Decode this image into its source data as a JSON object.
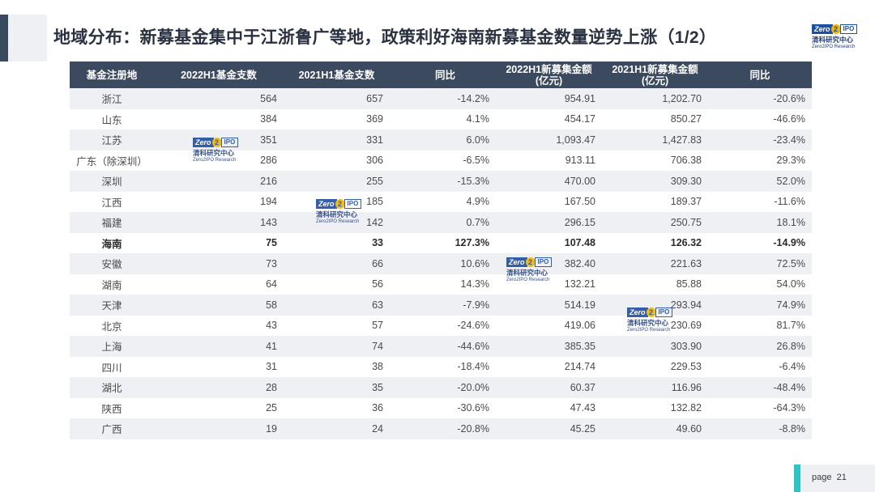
{
  "title": "地域分布：新募基金集中于江浙鲁广等地，政策利好海南新募基金数量逆势上涨（1/2）",
  "logo": {
    "zero": "Zero",
    "two": "2",
    "ipo": "IPO",
    "cn": "清科研究中心",
    "en": "Zero2IPO Research"
  },
  "table": {
    "headers": [
      "基金注册地",
      "2022H1基金支数",
      "2021H1基金支数",
      "同比",
      "2022H1新募集金额\n(亿元)",
      "2021H1新募集金额\n(亿元)",
      "同比"
    ],
    "rows": [
      [
        "浙江",
        "564",
        "657",
        "-14.2%",
        "954.91",
        "1,202.70",
        "-20.6%"
      ],
      [
        "山东",
        "384",
        "369",
        "4.1%",
        "454.17",
        "850.27",
        "-46.6%"
      ],
      [
        "江苏",
        "351",
        "331",
        "6.0%",
        "1,093.47",
        "1,427.83",
        "-23.4%"
      ],
      [
        "广东（除深圳）",
        "286",
        "306",
        "-6.5%",
        "913.11",
        "706.38",
        "29.3%"
      ],
      [
        "深圳",
        "216",
        "255",
        "-15.3%",
        "470.00",
        "309.30",
        "52.0%"
      ],
      [
        "江西",
        "194",
        "185",
        "4.9%",
        "167.50",
        "189.37",
        "-11.6%"
      ],
      [
        "福建",
        "143",
        "142",
        "0.7%",
        "296.15",
        "250.75",
        "18.1%"
      ],
      [
        "海南",
        "75",
        "33",
        "127.3%",
        "107.48",
        "126.32",
        "-14.9%"
      ],
      [
        "安徽",
        "73",
        "66",
        "10.6%",
        "382.40",
        "221.63",
        "72.5%"
      ],
      [
        "湖南",
        "64",
        "56",
        "14.3%",
        "132.21",
        "85.88",
        "54.0%"
      ],
      [
        "天津",
        "58",
        "63",
        "-7.9%",
        "514.19",
        "293.94",
        "74.9%"
      ],
      [
        "北京",
        "43",
        "57",
        "-24.6%",
        "419.06",
        "230.69",
        "81.7%"
      ],
      [
        "上海",
        "41",
        "74",
        "-44.6%",
        "385.35",
        "303.90",
        "26.8%"
      ],
      [
        "四川",
        "31",
        "38",
        "-18.4%",
        "214.74",
        "229.53",
        "-6.4%"
      ],
      [
        "湖北",
        "28",
        "35",
        "-20.0%",
        "60.37",
        "116.96",
        "-48.4%"
      ],
      [
        "陕西",
        "25",
        "36",
        "-30.6%",
        "47.43",
        "132.82",
        "-64.3%"
      ],
      [
        "广西",
        "19",
        "24",
        "-20.8%",
        "45.25",
        "49.60",
        "-8.8%"
      ]
    ]
  },
  "footer": {
    "page_label": "page",
    "page_number": "21"
  }
}
